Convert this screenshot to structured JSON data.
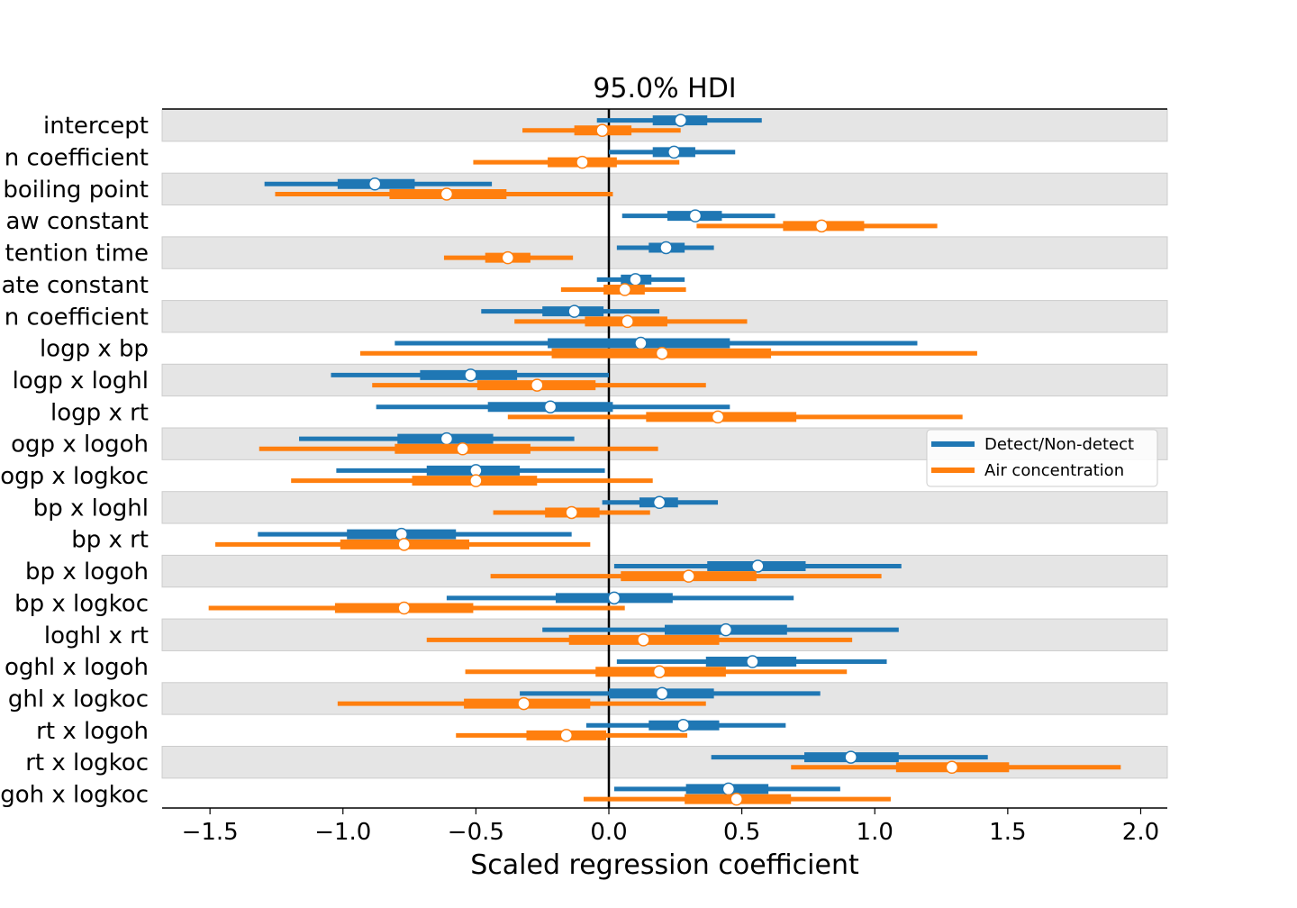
{
  "chart_data": {
    "type": "forest",
    "title": "95.0% HDI",
    "xlabel": "Scaled regression coefficient",
    "xlim": [
      -1.68,
      2.1
    ],
    "xticks": [
      -1.5,
      -1.0,
      -0.5,
      0.0,
      0.5,
      1.0,
      1.5,
      2.0
    ],
    "xtick_labels": [
      "−1.5",
      "−1.0",
      "−0.5",
      "0.0",
      "0.5",
      "1.0",
      "1.5",
      "2.0"
    ],
    "reference_line_x": 0,
    "legend_position": "center-right",
    "colors": {
      "Detect/Non-detect": "#1f77b4",
      "Air concentration": "#ff7f0e",
      "band": "#e5e5e5"
    },
    "categories": [
      "intercept",
      "n coefficient",
      "boiling point",
      "aw constant",
      "tention time",
      "ate constant",
      "n coefficient",
      "logp x bp",
      "logp x loghl",
      "logp x rt",
      "ogp x logoh",
      "ogp x logkoc",
      "bp x loghl",
      "bp x rt",
      "bp x logoh",
      "bp x logkoc",
      "loghl x rt",
      "oghl x logoh",
      "ghl x logkoc",
      "rt x logoh",
      "rt x logkoc",
      "goh x logkoc"
    ],
    "series": [
      {
        "name": "Detect/Non-detect",
        "median": [
          0.27,
          0.245,
          -0.88,
          0.325,
          0.215,
          0.1,
          -0.13,
          0.12,
          -0.52,
          -0.22,
          -0.61,
          -0.5,
          0.19,
          -0.78,
          0.56,
          0.02,
          0.44,
          0.54,
          0.2,
          0.28,
          0.91,
          0.45
        ],
        "iqr_low": [
          0.165,
          0.165,
          -1.02,
          0.22,
          0.15,
          0.045,
          -0.25,
          -0.23,
          -0.71,
          -0.455,
          -0.795,
          -0.685,
          0.115,
          -0.985,
          0.37,
          -0.2,
          0.21,
          0.365,
          0.0,
          0.15,
          0.735,
          0.29
        ],
        "iqr_high": [
          0.37,
          0.325,
          -0.73,
          0.425,
          0.285,
          0.16,
          -0.02,
          0.455,
          -0.345,
          0.015,
          -0.435,
          -0.335,
          0.26,
          -0.575,
          0.74,
          0.24,
          0.67,
          0.705,
          0.395,
          0.415,
          1.09,
          0.6
        ],
        "hdi_low": [
          -0.045,
          0.0,
          -1.295,
          0.05,
          0.03,
          -0.045,
          -0.48,
          -0.805,
          -1.045,
          -0.875,
          -1.165,
          -1.025,
          -0.025,
          -1.32,
          0.02,
          -0.61,
          -0.25,
          0.03,
          -0.335,
          -0.085,
          0.385,
          0.02
        ],
        "hdi_high": [
          0.575,
          0.475,
          -0.44,
          0.625,
          0.395,
          0.285,
          0.19,
          1.16,
          0.0,
          0.455,
          -0.13,
          -0.015,
          0.41,
          -0.14,
          1.1,
          0.695,
          1.09,
          1.045,
          0.795,
          0.665,
          1.425,
          0.87
        ]
      },
      {
        "name": "Air concentration",
        "median": [
          -0.025,
          -0.1,
          -0.61,
          0.8,
          -0.38,
          0.06,
          0.07,
          0.2,
          -0.27,
          0.41,
          -0.55,
          -0.5,
          -0.14,
          -0.77,
          0.3,
          -0.77,
          0.13,
          0.19,
          -0.32,
          -0.16,
          1.29,
          0.48
        ],
        "iqr_low": [
          -0.13,
          -0.23,
          -0.825,
          0.655,
          -0.465,
          -0.02,
          -0.09,
          -0.215,
          -0.495,
          0.14,
          -0.805,
          -0.74,
          -0.24,
          -1.01,
          0.045,
          -1.03,
          -0.15,
          -0.05,
          -0.545,
          -0.31,
          1.08,
          0.285
        ],
        "iqr_high": [
          0.085,
          0.03,
          -0.385,
          0.96,
          -0.295,
          0.135,
          0.22,
          0.61,
          -0.05,
          0.705,
          -0.295,
          -0.27,
          -0.035,
          -0.525,
          0.555,
          -0.51,
          0.415,
          0.44,
          -0.07,
          -0.01,
          1.505,
          0.685
        ],
        "hdi_low": [
          -0.325,
          -0.51,
          -1.255,
          0.33,
          -0.62,
          -0.18,
          -0.355,
          -0.935,
          -0.89,
          -0.38,
          -1.315,
          -1.195,
          -0.435,
          -1.48,
          -0.445,
          -1.505,
          -0.685,
          -0.54,
          -1.02,
          -0.575,
          0.685,
          -0.095
        ],
        "hdi_high": [
          0.27,
          0.265,
          0.015,
          1.235,
          -0.135,
          0.29,
          0.52,
          1.385,
          0.365,
          1.33,
          0.185,
          0.165,
          0.155,
          -0.07,
          1.025,
          0.06,
          0.915,
          0.895,
          0.365,
          0.295,
          1.925,
          1.06
        ]
      }
    ]
  }
}
